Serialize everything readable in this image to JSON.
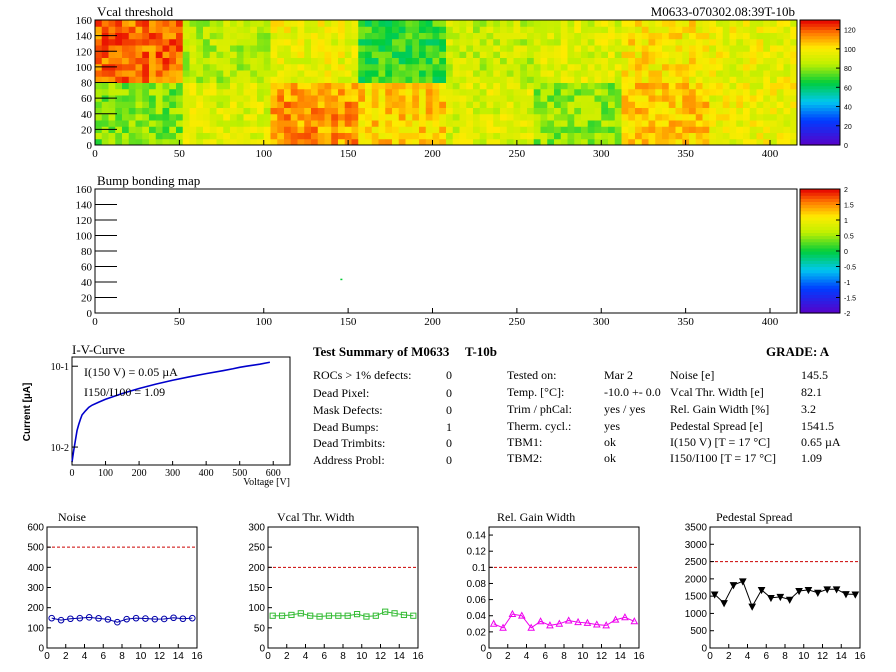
{
  "summary": {
    "title": "Test Summary of M0633",
    "tag": "T-10b",
    "grade": "GRADE:  A",
    "left_rows": [
      {
        "label": "ROCs > 1% defects:",
        "value": "0"
      },
      {
        "label": "Dead Pixel:",
        "value": "0"
      },
      {
        "label": "Mask Defects:",
        "value": "0"
      },
      {
        "label": "Dead Bumps:",
        "value": "1"
      },
      {
        "label": "Dead Trimbits:",
        "value": "0"
      },
      {
        "label": "Address Probl:",
        "value": "0"
      }
    ],
    "mid_rows": [
      {
        "label": "Tested on:",
        "value": "Mar 2"
      },
      {
        "label": "Temp. [°C]:",
        "value": "-10.0 +- 0.0"
      },
      {
        "label": "Trim / phCal:",
        "value": "yes / yes"
      },
      {
        "label": "Therm. cycl.:",
        "value": "yes"
      },
      {
        "label": "TBM1:",
        "value": "ok"
      },
      {
        "label": "TBM2:",
        "value": "ok"
      }
    ],
    "right_rows": [
      {
        "label": "Noise [e]",
        "value": "145.5"
      },
      {
        "label": "Vcal Thr. Width [e]",
        "value": "82.1"
      },
      {
        "label": "Rel. Gain Width [%]",
        "value": "3.2"
      },
      {
        "label": "Pedestal Spread [e]",
        "value": "1541.5"
      },
      {
        "label": "I(150 V) [T = 17 °C]",
        "value": "0.65 µA"
      },
      {
        "label": "I150/I100  [T = 17 °C]",
        "value": "1.09"
      }
    ]
  },
  "chart_data": [
    {
      "type": "heatmap",
      "title": "Vcal threshold",
      "id_label": "M0633-070302.08:39T-10b",
      "xlim": [
        0,
        416
      ],
      "ylim": [
        0,
        160
      ],
      "xticks": [
        0,
        50,
        100,
        150,
        200,
        250,
        300,
        350,
        400
      ],
      "yticks": [
        0,
        20,
        40,
        60,
        80,
        100,
        120,
        140,
        160
      ],
      "zlim": [
        0,
        130
      ],
      "zticks": [
        0,
        20,
        40,
        60,
        80,
        100,
        120
      ],
      "colors": {
        "low": "#5a00c8",
        "mid": "#00cc33",
        "high": "#ff0000"
      },
      "roc_means_top": [
        118,
        85,
        95,
        70,
        88,
        92,
        100,
        95
      ],
      "roc_means_bottom": [
        78,
        92,
        112,
        105,
        92,
        80,
        105,
        96
      ]
    },
    {
      "type": "heatmap",
      "title": "Bump bonding map",
      "xlim": [
        0,
        416
      ],
      "ylim": [
        0,
        160
      ],
      "xticks": [
        0,
        50,
        100,
        150,
        200,
        250,
        300,
        350,
        400
      ],
      "yticks": [
        0,
        20,
        40,
        60,
        80,
        100,
        120,
        140,
        160
      ],
      "zlim": [
        -2,
        2
      ],
      "zticks": [
        -2,
        -1.5,
        -1,
        -0.5,
        0,
        0.5,
        1,
        1.5,
        2
      ],
      "dead_bumps": [
        {
          "x": 146,
          "y": 43
        }
      ]
    },
    {
      "type": "line",
      "title": "I-V-Curve",
      "xlabel": "Voltage [V]",
      "ylabel": "Current [µA]",
      "log_y": true,
      "xlim": [
        0,
        650
      ],
      "ylim": [
        0.006,
        0.13
      ],
      "xticks": [
        0,
        100,
        200,
        300,
        400,
        500,
        600
      ],
      "ytick_labels": [
        "10-2",
        "10-1"
      ],
      "annotation1": "I(150 V) = 0.05 µA",
      "annotation2": "I150/I100 = 1.09",
      "color": "#0000cc",
      "x": [
        0,
        5,
        10,
        15,
        20,
        25,
        30,
        40,
        50,
        60,
        80,
        100,
        150,
        200,
        250,
        300,
        350,
        400,
        450,
        480,
        500,
        520,
        540,
        560,
        580,
        590
      ],
      "y": [
        0.0065,
        0.009,
        0.012,
        0.016,
        0.019,
        0.022,
        0.025,
        0.028,
        0.031,
        0.033,
        0.036,
        0.039,
        0.046,
        0.053,
        0.06,
        0.067,
        0.074,
        0.081,
        0.088,
        0.093,
        0.097,
        0.1,
        0.103,
        0.106,
        0.11,
        0.112
      ]
    },
    {
      "type": "line",
      "title": "Noise",
      "xlim": [
        0,
        16
      ],
      "ylim": [
        0,
        600
      ],
      "xticks": [
        0,
        2,
        4,
        6,
        8,
        10,
        12,
        14,
        16
      ],
      "yticks": [
        0,
        100,
        200,
        300,
        400,
        500,
        600
      ],
      "reference": 500,
      "color": "#0000aa",
      "marker": "circle",
      "x": [
        0.5,
        1.5,
        2.5,
        3.5,
        4.5,
        5.5,
        6.5,
        7.5,
        8.5,
        9.5,
        10.5,
        11.5,
        12.5,
        13.5,
        14.5,
        15.5
      ],
      "values": [
        148,
        138,
        145,
        148,
        152,
        147,
        142,
        128,
        143,
        148,
        146,
        143,
        144,
        150,
        145,
        148
      ]
    },
    {
      "type": "line",
      "title": "Vcal Thr. Width",
      "xlim": [
        0,
        16
      ],
      "ylim": [
        0,
        300
      ],
      "xticks": [
        0,
        2,
        4,
        6,
        8,
        10,
        12,
        14,
        16
      ],
      "yticks": [
        0,
        50,
        100,
        150,
        200,
        250,
        300
      ],
      "reference": 200,
      "color": "#33bb33",
      "marker": "square",
      "x": [
        0.5,
        1.5,
        2.5,
        3.5,
        4.5,
        5.5,
        6.5,
        7.5,
        8.5,
        9.5,
        10.5,
        11.5,
        12.5,
        13.5,
        14.5,
        15.5
      ],
      "values": [
        80,
        80,
        82,
        86,
        80,
        78,
        80,
        80,
        80,
        84,
        78,
        80,
        90,
        86,
        82,
        80
      ]
    },
    {
      "type": "line",
      "title": "Rel. Gain Width",
      "xlim": [
        0,
        16
      ],
      "ylim": [
        0,
        0.15
      ],
      "xticks": [
        0,
        2,
        4,
        6,
        8,
        10,
        12,
        14,
        16
      ],
      "yticks": [
        0,
        0.02,
        0.04,
        0.06,
        0.08,
        0.1,
        0.12,
        0.14
      ],
      "reference": 0.1,
      "color": "#ee00ee",
      "marker": "triangle",
      "x": [
        0.5,
        1.5,
        2.5,
        3.5,
        4.5,
        5.5,
        6.5,
        7.5,
        8.5,
        9.5,
        10.5,
        11.5,
        12.5,
        13.5,
        14.5,
        15.5
      ],
      "values": [
        0.03,
        0.025,
        0.042,
        0.04,
        0.025,
        0.033,
        0.028,
        0.03,
        0.034,
        0.032,
        0.031,
        0.029,
        0.028,
        0.035,
        0.038,
        0.033
      ]
    },
    {
      "type": "line",
      "title": "Pedestal Spread",
      "xlim": [
        0,
        16
      ],
      "ylim": [
        0,
        3500
      ],
      "xticks": [
        0,
        2,
        4,
        6,
        8,
        10,
        12,
        14,
        16
      ],
      "yticks": [
        0,
        500,
        1000,
        1500,
        2000,
        2500,
        3000,
        3500
      ],
      "reference": 2500,
      "color": "#000000",
      "marker": "triangle-down",
      "x": [
        0.5,
        1.5,
        2.5,
        3.5,
        4.5,
        5.5,
        6.5,
        7.5,
        8.5,
        9.5,
        10.5,
        11.5,
        12.5,
        13.5,
        14.5,
        15.5
      ],
      "values": [
        1550,
        1300,
        1820,
        1930,
        1200,
        1680,
        1450,
        1480,
        1400,
        1650,
        1680,
        1600,
        1700,
        1700,
        1560,
        1550
      ]
    }
  ]
}
